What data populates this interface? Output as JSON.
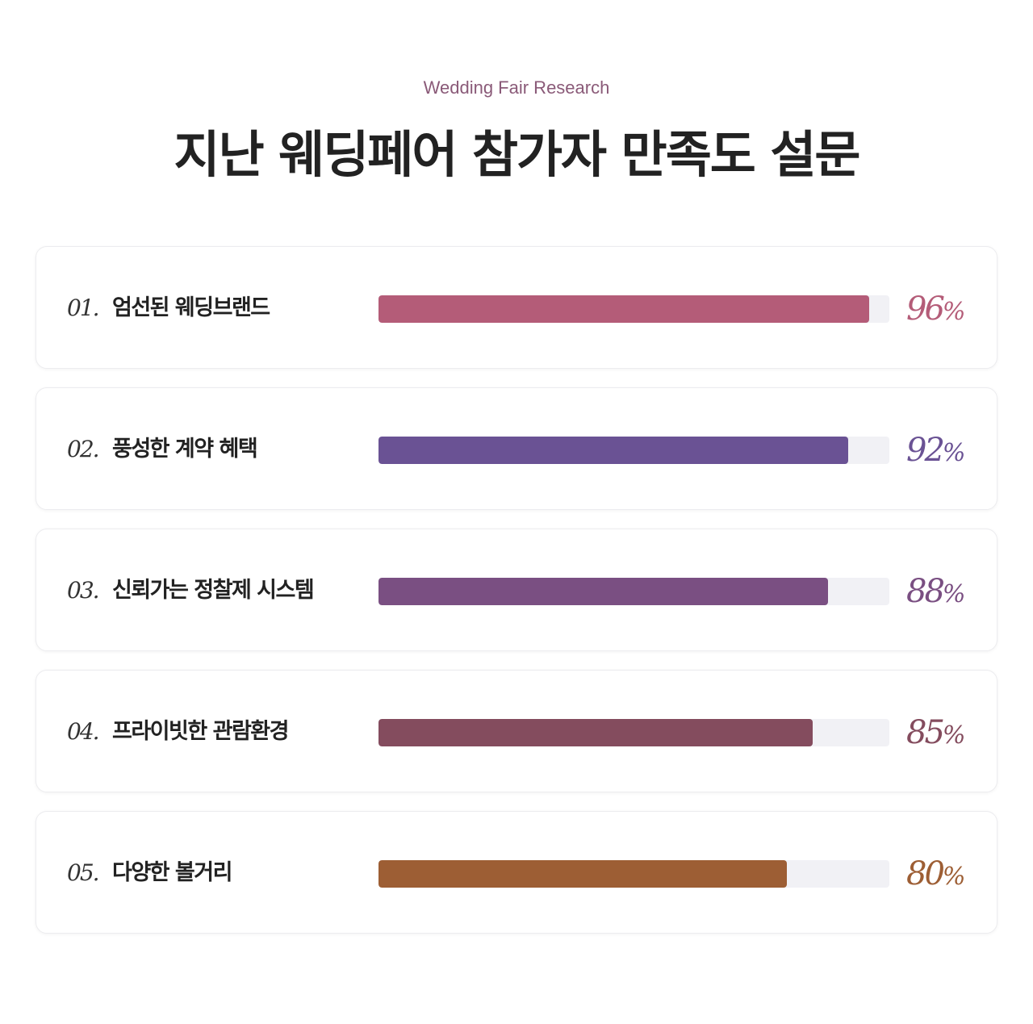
{
  "header": {
    "eyebrow": "Wedding Fair Research",
    "title": "지난 웨딩페어 참가자 만족도 설문"
  },
  "chart_data": {
    "type": "bar",
    "orientation": "horizontal",
    "ylim": [
      0,
      100
    ],
    "items": [
      {
        "number": "01.",
        "label": "엄선된 웨딩브랜드",
        "value": 96,
        "value_text": "96",
        "unit": "%",
        "color": "#b45c78"
      },
      {
        "number": "02.",
        "label": "풍성한 계약 혜택",
        "value": 92,
        "value_text": "92",
        "unit": "%",
        "color": "#6a5294"
      },
      {
        "number": "03.",
        "label": "신뢰가는 정찰제 시스템",
        "value": 88,
        "value_text": "88",
        "unit": "%",
        "color": "#7a4f82"
      },
      {
        "number": "04.",
        "label": "프라이빗한 관람환경",
        "value": 85,
        "value_text": "85",
        "unit": "%",
        "color": "#844c5e"
      },
      {
        "number": "05.",
        "label": "다양한 볼거리",
        "value": 80,
        "value_text": "80",
        "unit": "%",
        "color": "#9d5e34"
      }
    ]
  }
}
